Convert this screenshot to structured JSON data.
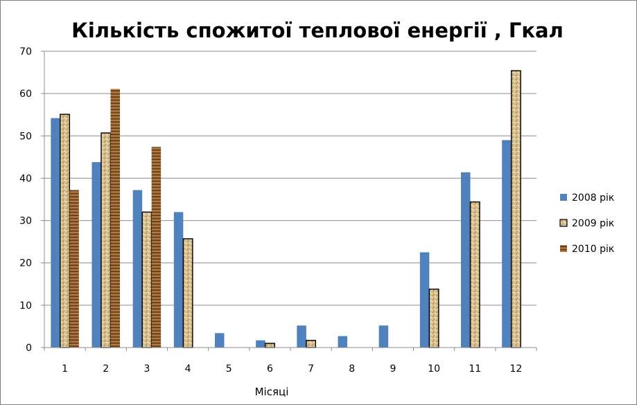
{
  "chart_data": {
    "type": "bar",
    "title": "Кількість спожитої теплової енергії , Гкал",
    "xlabel": "Місяці",
    "ylabel": "",
    "ylim": [
      0,
      70
    ],
    "ytick_step": 10,
    "grid": true,
    "legend_position": "right",
    "categories": [
      "1",
      "2",
      "3",
      "4",
      "5",
      "6",
      "7",
      "8",
      "9",
      "10",
      "11",
      "12"
    ],
    "series": [
      {
        "name": "2008 рік",
        "color": "#4f81bd",
        "fill": "solid",
        "values": [
          54.2,
          43.8,
          37.2,
          32.0,
          3.4,
          1.7,
          5.2,
          2.7,
          5.2,
          22.5,
          41.4,
          49.0
        ]
      },
      {
        "name": "2009 рік",
        "color": "#d9c08c",
        "fill": "speckled",
        "values": [
          55.1,
          50.7,
          32.0,
          25.7,
          0,
          1.0,
          1.7,
          0,
          0,
          13.8,
          34.4,
          65.4
        ]
      },
      {
        "name": "2010 рік",
        "color": "#8b5a2b",
        "fill": "wood",
        "values": [
          37.2,
          61.1,
          47.4,
          0,
          0,
          0,
          0,
          0,
          0,
          0,
          0,
          0
        ]
      }
    ]
  }
}
